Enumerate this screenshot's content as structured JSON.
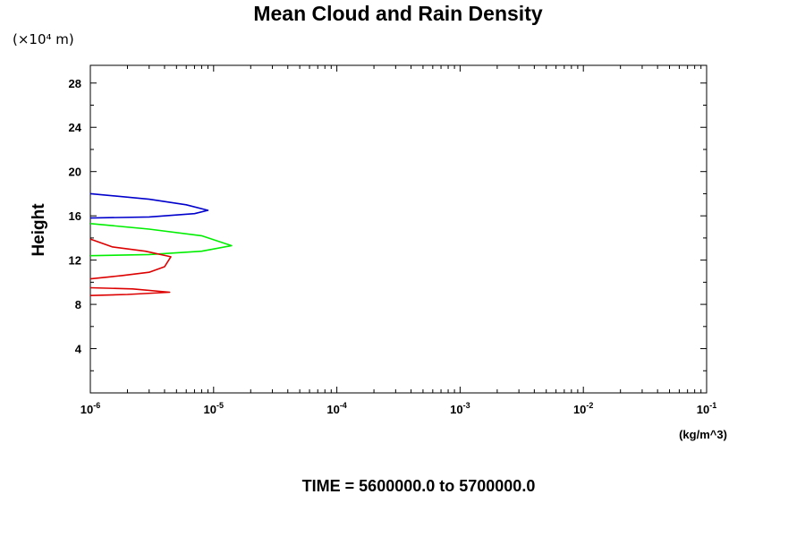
{
  "chart_data": {
    "type": "line",
    "title": "Mean Cloud and Rain Density",
    "y_scale_label": "(×10⁴ m)",
    "ylabel": "Height",
    "xlabel_unit": "(kg/m^3)",
    "footer": "TIME = 5600000.0 to 5700000.0",
    "x_scale": "log",
    "xlim": [
      1e-06,
      0.1
    ],
    "ylim": [
      0,
      29.6
    ],
    "x_ticks": [
      {
        "base": "10",
        "exp": "-6",
        "value": 1e-06
      },
      {
        "base": "10",
        "exp": "-5",
        "value": 1e-05
      },
      {
        "base": "10",
        "exp": "-4",
        "value": 0.0001
      },
      {
        "base": "10",
        "exp": "-3",
        "value": 0.001
      },
      {
        "base": "10",
        "exp": "-2",
        "value": 0.01
      },
      {
        "base": "10",
        "exp": "-1",
        "value": 0.1
      }
    ],
    "y_ticks": [
      {
        "label": "4",
        "value": 4
      },
      {
        "label": "8",
        "value": 8
      },
      {
        "label": "12",
        "value": 12
      },
      {
        "label": "16",
        "value": 16
      },
      {
        "label": "20",
        "value": 20
      },
      {
        "label": "24",
        "value": 24
      },
      {
        "label": "28",
        "value": 28
      }
    ],
    "grid": false,
    "series": [
      {
        "color": "#0000cc",
        "points": [
          [
            1e-06,
            18.0
          ],
          [
            3e-06,
            17.5
          ],
          [
            6e-06,
            17.0
          ],
          [
            9e-06,
            16.5
          ],
          [
            7e-06,
            16.2
          ],
          [
            3e-06,
            15.9
          ],
          [
            1e-06,
            15.8
          ]
        ]
      },
      {
        "color": "#00ee00",
        "points": [
          [
            1e-06,
            15.3
          ],
          [
            3e-06,
            14.8
          ],
          [
            8e-06,
            14.2
          ],
          [
            1.4e-05,
            13.3
          ],
          [
            8e-06,
            12.8
          ],
          [
            3e-06,
            12.5
          ],
          [
            1e-06,
            12.4
          ]
        ]
      },
      {
        "color": "#dd0000",
        "points": [
          [
            1e-06,
            13.9
          ],
          [
            1.5e-06,
            13.2
          ],
          [
            2.8e-06,
            12.8
          ],
          [
            4.5e-06,
            12.3
          ],
          [
            4e-06,
            11.4
          ],
          [
            3e-06,
            10.9
          ],
          [
            1.8e-06,
            10.6
          ],
          [
            1e-06,
            10.3
          ]
        ]
      },
      {
        "color": "#dd0000",
        "points": [
          [
            1e-06,
            9.5
          ],
          [
            2.2e-06,
            9.4
          ],
          [
            4.4e-06,
            9.1
          ],
          [
            2e-06,
            8.9
          ],
          [
            1e-06,
            8.8
          ]
        ]
      }
    ]
  }
}
